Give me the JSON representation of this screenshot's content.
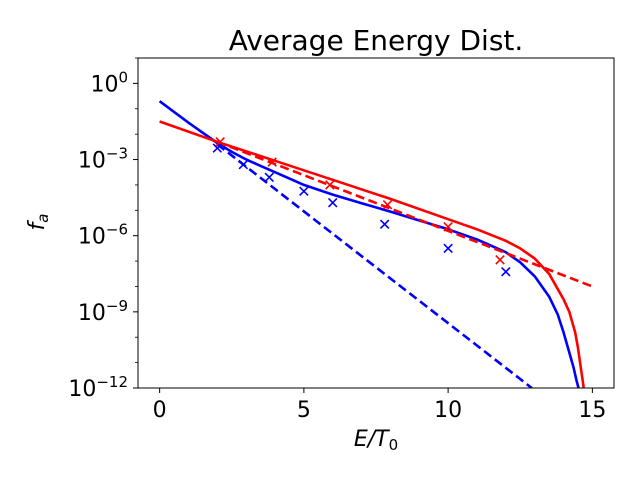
{
  "chart_data": {
    "type": "line",
    "title": "Average Energy Dist.",
    "xlabel": "E/T",
    "xlabel_sub": "0",
    "ylabel": "f",
    "ylabel_sub": "a",
    "xlim": [
      -0.75,
      15.75
    ],
    "ylim_log10": [
      -12,
      1
    ],
    "yscale": "log",
    "grid": false,
    "x_ticks": [
      {
        "value": 0,
        "label": "0"
      },
      {
        "value": 5,
        "label": "5"
      },
      {
        "value": 10,
        "label": "10"
      },
      {
        "value": 15,
        "label": "15"
      }
    ],
    "y_ticks": [
      {
        "exp": 0,
        "base": "10",
        "sup": "0"
      },
      {
        "exp": -3,
        "base": "10",
        "sup": "−3"
      },
      {
        "exp": -6,
        "base": "10",
        "sup": "−6"
      },
      {
        "exp": -9,
        "base": "10",
        "sup": "−9"
      },
      {
        "exp": -12,
        "base": "10",
        "sup": "−12"
      }
    ],
    "series": [
      {
        "name": "blue-solid",
        "color": "#0000ff",
        "style": "solid",
        "x": [
          0,
          1,
          2,
          2.5,
          3,
          3.5,
          4,
          5,
          6,
          7,
          8,
          9,
          10,
          11,
          12,
          12.5,
          13,
          13.5,
          13.8,
          14,
          14.2,
          14.35,
          14.45,
          14.52
        ],
        "log10_y": [
          -0.7,
          -1.55,
          -2.35,
          -2.7,
          -3.0,
          -3.25,
          -3.5,
          -4.0,
          -4.38,
          -4.72,
          -5.05,
          -5.4,
          -5.75,
          -6.15,
          -6.65,
          -7.05,
          -7.6,
          -8.4,
          -9.1,
          -9.8,
          -10.6,
          -11.2,
          -11.7,
          -12.0
        ]
      },
      {
        "name": "red-solid",
        "color": "#ff0000",
        "style": "solid",
        "x": [
          0,
          2,
          4,
          6,
          8,
          10,
          11,
          12,
          12.5,
          13,
          13.5,
          14,
          14.2,
          14.4,
          14.5,
          14.6,
          14.65,
          14.7,
          14.72
        ],
        "log10_y": [
          -1.5,
          -2.3,
          -3.05,
          -3.8,
          -4.55,
          -5.35,
          -5.75,
          -6.2,
          -6.5,
          -6.9,
          -7.5,
          -8.5,
          -9.0,
          -9.8,
          -10.4,
          -11.2,
          -11.6,
          -12.0,
          -12.0
        ]
      },
      {
        "name": "blue-dashed",
        "color": "#0000ff",
        "style": "dashed",
        "x": [
          2.0,
          12.9
        ],
        "log10_y": [
          -2.4,
          -12.0
        ]
      },
      {
        "name": "red-dashed",
        "color": "#ff0000",
        "style": "dashed",
        "x": [
          2.0,
          15.0
        ],
        "log10_y": [
          -2.3,
          -8.0
        ]
      }
    ],
    "markers": [
      {
        "name": "blue-x-markers",
        "color": "#0000ff",
        "x": [
          2.0,
          2.9,
          3.8,
          5.0,
          6.0,
          7.8,
          10.0,
          12.0
        ],
        "log10_y": [
          -2.55,
          -3.2,
          -3.7,
          -4.25,
          -4.7,
          -5.55,
          -6.5,
          -7.42
        ]
      },
      {
        "name": "red-x-markers",
        "color": "#ff0000",
        "x": [
          2.1,
          3.9,
          5.9,
          7.9,
          10.0,
          11.8
        ],
        "log10_y": [
          -2.3,
          -3.1,
          -4.0,
          -4.78,
          -5.65,
          -6.95
        ]
      }
    ]
  }
}
